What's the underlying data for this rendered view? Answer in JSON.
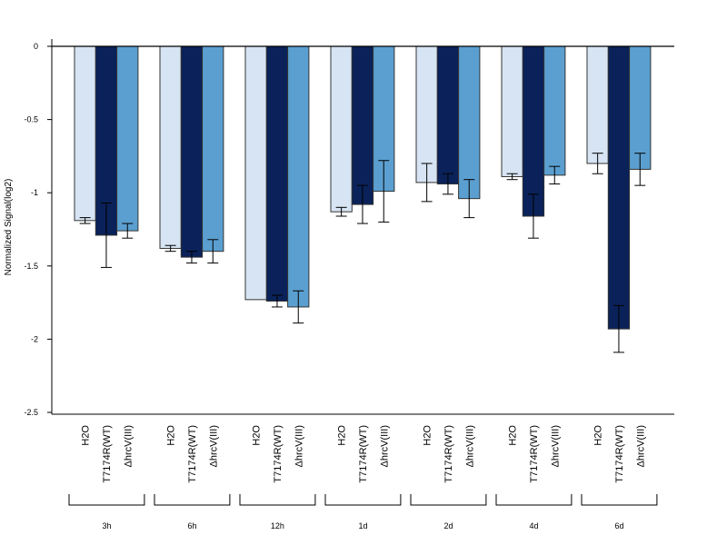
{
  "chart_data": {
    "type": "bar",
    "ylabel": "Normalized Signal(log2)",
    "ylim": [
      -2.5,
      0.05
    ],
    "yticks": [
      0,
      -0.5,
      -1,
      -1.5,
      -2,
      -2.5
    ],
    "ytick_labels": [
      "0",
      "-0.5",
      "-1",
      "-1.5",
      "-2",
      "-2.5"
    ],
    "groups": [
      "3h",
      "6h",
      "12h",
      "1d",
      "2d",
      "4d",
      "6d"
    ],
    "series": [
      {
        "name": "H2O",
        "color": "#d6e4f3",
        "values": [
          -1.19,
          -1.38,
          -1.73,
          -1.13,
          -0.93,
          -0.89,
          -0.8
        ],
        "errors": [
          0.02,
          0.02,
          0.0,
          0.03,
          0.13,
          0.02,
          0.07
        ]
      },
      {
        "name": "T7174R(WT)",
        "color": "#0a2259",
        "values": [
          -1.29,
          -1.44,
          -1.74,
          -1.08,
          -0.94,
          -1.16,
          -1.93
        ],
        "errors": [
          0.22,
          0.04,
          0.04,
          0.13,
          0.07,
          0.15,
          0.16
        ]
      },
      {
        "name": "ΔhrcV(III)",
        "color": "#5b9fd0",
        "values": [
          -1.26,
          -1.4,
          -1.78,
          -0.99,
          -1.04,
          -0.88,
          -0.84
        ],
        "errors": [
          0.05,
          0.08,
          0.11,
          0.21,
          0.13,
          0.06,
          0.11
        ]
      }
    ]
  }
}
